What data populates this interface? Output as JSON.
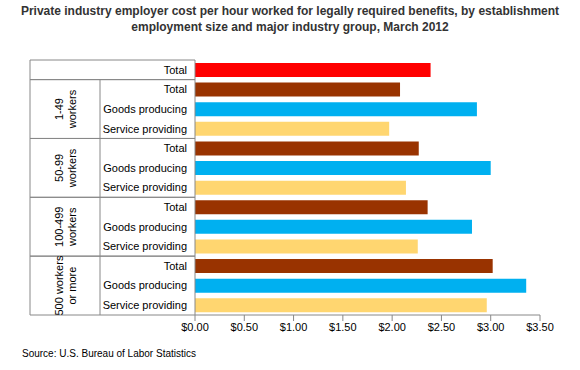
{
  "chart_data": {
    "type": "bar",
    "orientation": "horizontal",
    "title": "Private industry employer cost per hour worked for legally required benefits, by establishment employment size and major industry group, March 2012",
    "subtitle": "Source: U.S. Bureau of Labor Statistics",
    "categories": [
      "Total",
      "Total",
      "Goods producing",
      "Service providing",
      "Total",
      "Goods producing",
      "Service providing",
      "Total",
      "Goods producing",
      "Service providing",
      "Total",
      "Goods producing",
      "Service providing"
    ],
    "groups": [
      null,
      "1-49 workers",
      "1-49 workers",
      "1-49 workers",
      "50-99 workers",
      "50-99 workers",
      "50-99 workers",
      "100-499 workers",
      "100-499 workers",
      "100-499 workers",
      "500 workers or more",
      "500 workers or more",
      "500 workers or more"
    ],
    "values": [
      2.39,
      2.08,
      2.86,
      1.97,
      2.27,
      3.0,
      2.14,
      2.36,
      2.81,
      2.26,
      3.02,
      3.36,
      2.96
    ],
    "colors": [
      "#ff0000",
      "#993300",
      "#00b0f0",
      "#ffd670",
      "#993300",
      "#00b0f0",
      "#ffd670",
      "#993300",
      "#00b0f0",
      "#ffd670",
      "#993300",
      "#00b0f0",
      "#ffd670"
    ],
    "xlim": [
      0,
      3.5
    ],
    "xticks": [
      {
        "value": 0,
        "label": "$0.00"
      },
      {
        "value": 0.5,
        "label": "$0.50"
      },
      {
        "value": 1,
        "label": "$1.00"
      },
      {
        "value": 1.5,
        "label": "$1.50"
      },
      {
        "value": 2,
        "label": "$2.00"
      },
      {
        "value": 2.5,
        "label": "$2.50"
      },
      {
        "value": 3,
        "label": "$3.00"
      },
      {
        "value": 3.5,
        "label": "$3.50"
      }
    ],
    "grid": false
  }
}
